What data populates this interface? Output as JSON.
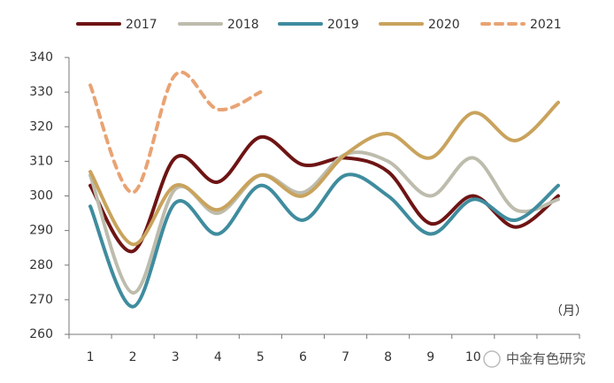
{
  "chart_data": {
    "type": "line",
    "categories": [
      "1",
      "2",
      "3",
      "4",
      "5",
      "6",
      "7",
      "8",
      "9",
      "10",
      null,
      null
    ],
    "series": [
      {
        "name": "2017",
        "color": "#6e1414",
        "values": [
          303,
          284,
          311,
          304,
          317,
          309,
          311,
          307,
          292,
          300,
          291,
          300
        ]
      },
      {
        "name": "2018",
        "color": "#bdbcad",
        "values": [
          306,
          272,
          302,
          295,
          306,
          301,
          312,
          310,
          300,
          311,
          296,
          299
        ]
      },
      {
        "name": "2019",
        "color": "#3f8c9e",
        "values": [
          297,
          268,
          298,
          289,
          303,
          293,
          306,
          300,
          289,
          299,
          293,
          303
        ]
      },
      {
        "name": "2020",
        "color": "#c9a35c",
        "values": [
          307,
          286,
          303,
          296,
          306,
          300,
          312,
          318,
          311,
          324,
          316,
          327
        ]
      },
      {
        "name": "2021",
        "color": "#e9a373",
        "dashed": true,
        "values": [
          332,
          301,
          335,
          325,
          330,
          null,
          null,
          null,
          null,
          null,
          null,
          null
        ]
      }
    ],
    "ylim": [
      260,
      340
    ],
    "yticks": [
      260,
      270,
      280,
      290,
      300,
      310,
      320,
      330,
      340
    ],
    "x_label": "（月）",
    "annotation": "中金有色研究",
    "legend": "top",
    "grid": false
  }
}
